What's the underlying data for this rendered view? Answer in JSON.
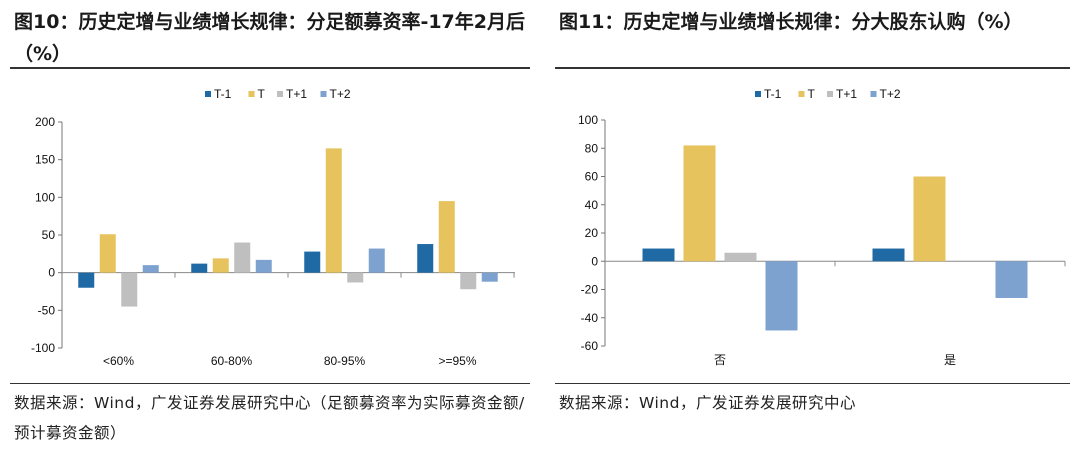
{
  "figures": [
    {
      "title": "图10：历史定增与业绩增长规律：分足额募资率-17年2月后（%）",
      "source": "数据来源：Wind，广发证券发展研究中心（足额募资率为实际募资金额/预计募资金额）",
      "chart_data": {
        "type": "bar",
        "categories": [
          "<60%",
          "60-80%",
          "80-95%",
          ">=95%"
        ],
        "series": [
          {
            "name": "T-1",
            "color": "#1f6aa5",
            "values": [
              -20,
              12,
              28,
              38
            ]
          },
          {
            "name": "T",
            "color": "#e6c35c",
            "values": [
              51,
              19,
              165,
              95
            ]
          },
          {
            "name": "T+1",
            "color": "#bfbfbf",
            "values": [
              -45,
              40,
              -13,
              -22
            ]
          },
          {
            "name": "T+2",
            "color": "#7da2d0",
            "values": [
              10,
              17,
              32,
              -12
            ]
          }
        ],
        "ylim": [
          -100,
          200
        ],
        "yticks": [
          -100,
          -50,
          0,
          50,
          100,
          150,
          200
        ],
        "title": "",
        "xlabel": "",
        "ylabel": "",
        "legend_position": "top-center"
      }
    },
    {
      "title": "图11：历史定增与业绩增长规律：分大股东认购（%）",
      "source": "数据来源：Wind，广发证券发展研究中心",
      "chart_data": {
        "type": "bar",
        "categories": [
          "否",
          "是"
        ],
        "series": [
          {
            "name": "T-1",
            "color": "#1f6aa5",
            "values": [
              9,
              9
            ]
          },
          {
            "name": "T",
            "color": "#e6c35c",
            "values": [
              82,
              60
            ]
          },
          {
            "name": "T+1",
            "color": "#bfbfbf",
            "values": [
              6,
              0
            ]
          },
          {
            "name": "T+2",
            "color": "#7da2d0",
            "values": [
              -49,
              -26
            ]
          }
        ],
        "ylim": [
          -60,
          100
        ],
        "yticks": [
          -60,
          -40,
          -20,
          0,
          20,
          40,
          60,
          80,
          100
        ],
        "title": "",
        "xlabel": "",
        "ylabel": "",
        "legend_position": "top-center"
      }
    }
  ]
}
